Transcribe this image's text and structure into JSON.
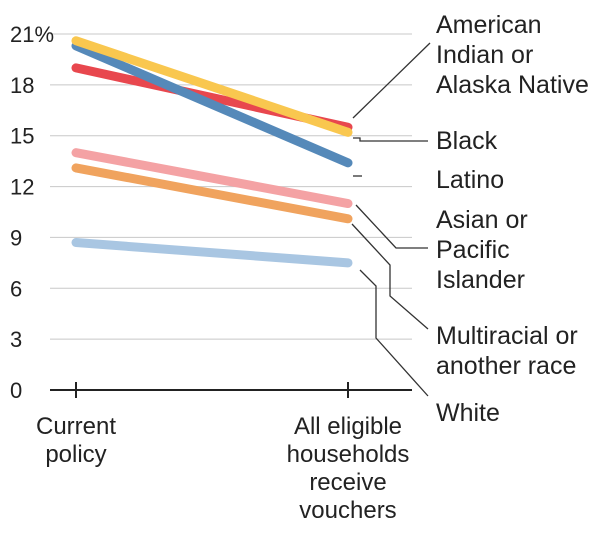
{
  "chart_data": {
    "type": "line",
    "categories": [
      "Current policy",
      "All eligible households receive vouchers"
    ],
    "category_lines": [
      [
        "Current",
        "policy"
      ],
      [
        "All eligible",
        "households",
        "receive",
        "vouchers"
      ]
    ],
    "y_ticks": [
      "0",
      "3",
      "6",
      "9",
      "12",
      "15",
      "18",
      "21%"
    ],
    "ylim": [
      0,
      21
    ],
    "grid": true,
    "series": [
      {
        "name": "American Indian or Alaska Native",
        "label_lines": [
          "American",
          "Indian or",
          "Alaska Native"
        ],
        "values": [
          19.0,
          15.5
        ],
        "color": "#e8474e"
      },
      {
        "name": "Latino",
        "label_lines": [
          "Latino"
        ],
        "values": [
          20.3,
          13.4
        ],
        "color": "#5589b9"
      },
      {
        "name": "Black",
        "label_lines": [
          "Black"
        ],
        "values": [
          20.6,
          15.2
        ],
        "color": "#f9c74f"
      },
      {
        "name": "Asian or Pacific Islander",
        "label_lines": [
          "Asian or",
          "Pacific",
          "Islander"
        ],
        "values": [
          14.0,
          11.0
        ],
        "color": "#f4a2a4"
      },
      {
        "name": "Multiracial or another race",
        "label_lines": [
          "Multiracial or",
          "another race"
        ],
        "values": [
          13.1,
          10.1
        ],
        "color": "#f0a35e"
      },
      {
        "name": "White",
        "label_lines": [
          "White"
        ],
        "values": [
          8.7,
          7.5
        ],
        "color": "#a9c6e2"
      }
    ]
  }
}
